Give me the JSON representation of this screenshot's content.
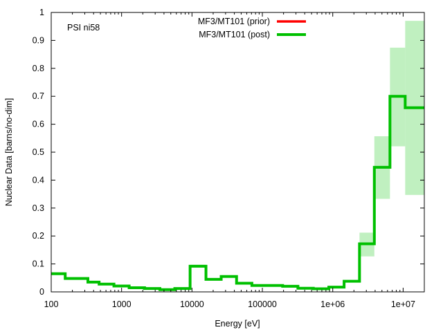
{
  "chart_data": {
    "type": "line",
    "step": true,
    "title": "",
    "annotation": "PSI ni58",
    "xlabel": "Energy [eV]",
    "ylabel": "Nuclear Data [barns/no-dim]",
    "xscale": "log",
    "xlim": [
      100,
      20000000
    ],
    "ylim": [
      0,
      1
    ],
    "grid": false,
    "legend_position": "top-center",
    "x_ticks": [
      {
        "value": 100,
        "label": "100"
      },
      {
        "value": 1000,
        "label": "1000"
      },
      {
        "value": 10000,
        "label": "10000"
      },
      {
        "value": 100000,
        "label": "100000"
      },
      {
        "value": 1000000,
        "label": "1e+06"
      },
      {
        "value": 10000000,
        "label": "1e+07"
      }
    ],
    "y_ticks": [
      {
        "value": 0,
        "label": "0"
      },
      {
        "value": 0.1,
        "label": "0.1"
      },
      {
        "value": 0.2,
        "label": "0.2"
      },
      {
        "value": 0.3,
        "label": "0.3"
      },
      {
        "value": 0.4,
        "label": "0.4"
      },
      {
        "value": 0.5,
        "label": "0.5"
      },
      {
        "value": 0.6,
        "label": "0.6"
      },
      {
        "value": 0.7,
        "label": "0.7"
      },
      {
        "value": 0.8,
        "label": "0.8"
      },
      {
        "value": 0.9,
        "label": "0.9"
      },
      {
        "value": 1,
        "label": "1"
      }
    ],
    "bin_edges": [
      100,
      158,
      332,
      479,
      778,
      1280,
      2120,
      3500,
      5700,
      9400,
      15800,
      26000,
      43000,
      71000,
      194000,
      320000,
      530000,
      880000,
      1450000,
      2400000,
      3900000,
      6500000,
      10700000,
      20000000
    ],
    "series": [
      {
        "name": "MF3/MT101 (prior)",
        "color": "#ff0000",
        "values": [
          0.065,
          0.048,
          0.035,
          0.028,
          0.021,
          0.015,
          0.012,
          0.008,
          0.012,
          0.092,
          0.045,
          0.055,
          0.031,
          0.023,
          0.02,
          0.013,
          0.011,
          0.017,
          0.038,
          0.172,
          0.446,
          0.7,
          0.659
        ]
      },
      {
        "name": "MF3/MT101 (post)",
        "color": "#00c000",
        "band_color": "#c0f0c0",
        "values": [
          0.065,
          0.048,
          0.035,
          0.028,
          0.021,
          0.015,
          0.012,
          0.008,
          0.012,
          0.092,
          0.045,
          0.055,
          0.031,
          0.023,
          0.02,
          0.013,
          0.011,
          0.017,
          0.038,
          0.172,
          0.446,
          0.7,
          0.659
        ],
        "lower": [
          0.061,
          0.046,
          0.034,
          0.027,
          0.02,
          0.014,
          0.011,
          0.007,
          0.011,
          0.087,
          0.043,
          0.053,
          0.03,
          0.022,
          0.019,
          0.012,
          0.01,
          0.016,
          0.036,
          0.127,
          0.333,
          0.521,
          0.347
        ],
        "upper": [
          0.07,
          0.051,
          0.037,
          0.03,
          0.022,
          0.016,
          0.013,
          0.009,
          0.013,
          0.097,
          0.047,
          0.058,
          0.033,
          0.024,
          0.021,
          0.014,
          0.012,
          0.018,
          0.041,
          0.212,
          0.557,
          0.874,
          0.97
        ]
      }
    ]
  }
}
